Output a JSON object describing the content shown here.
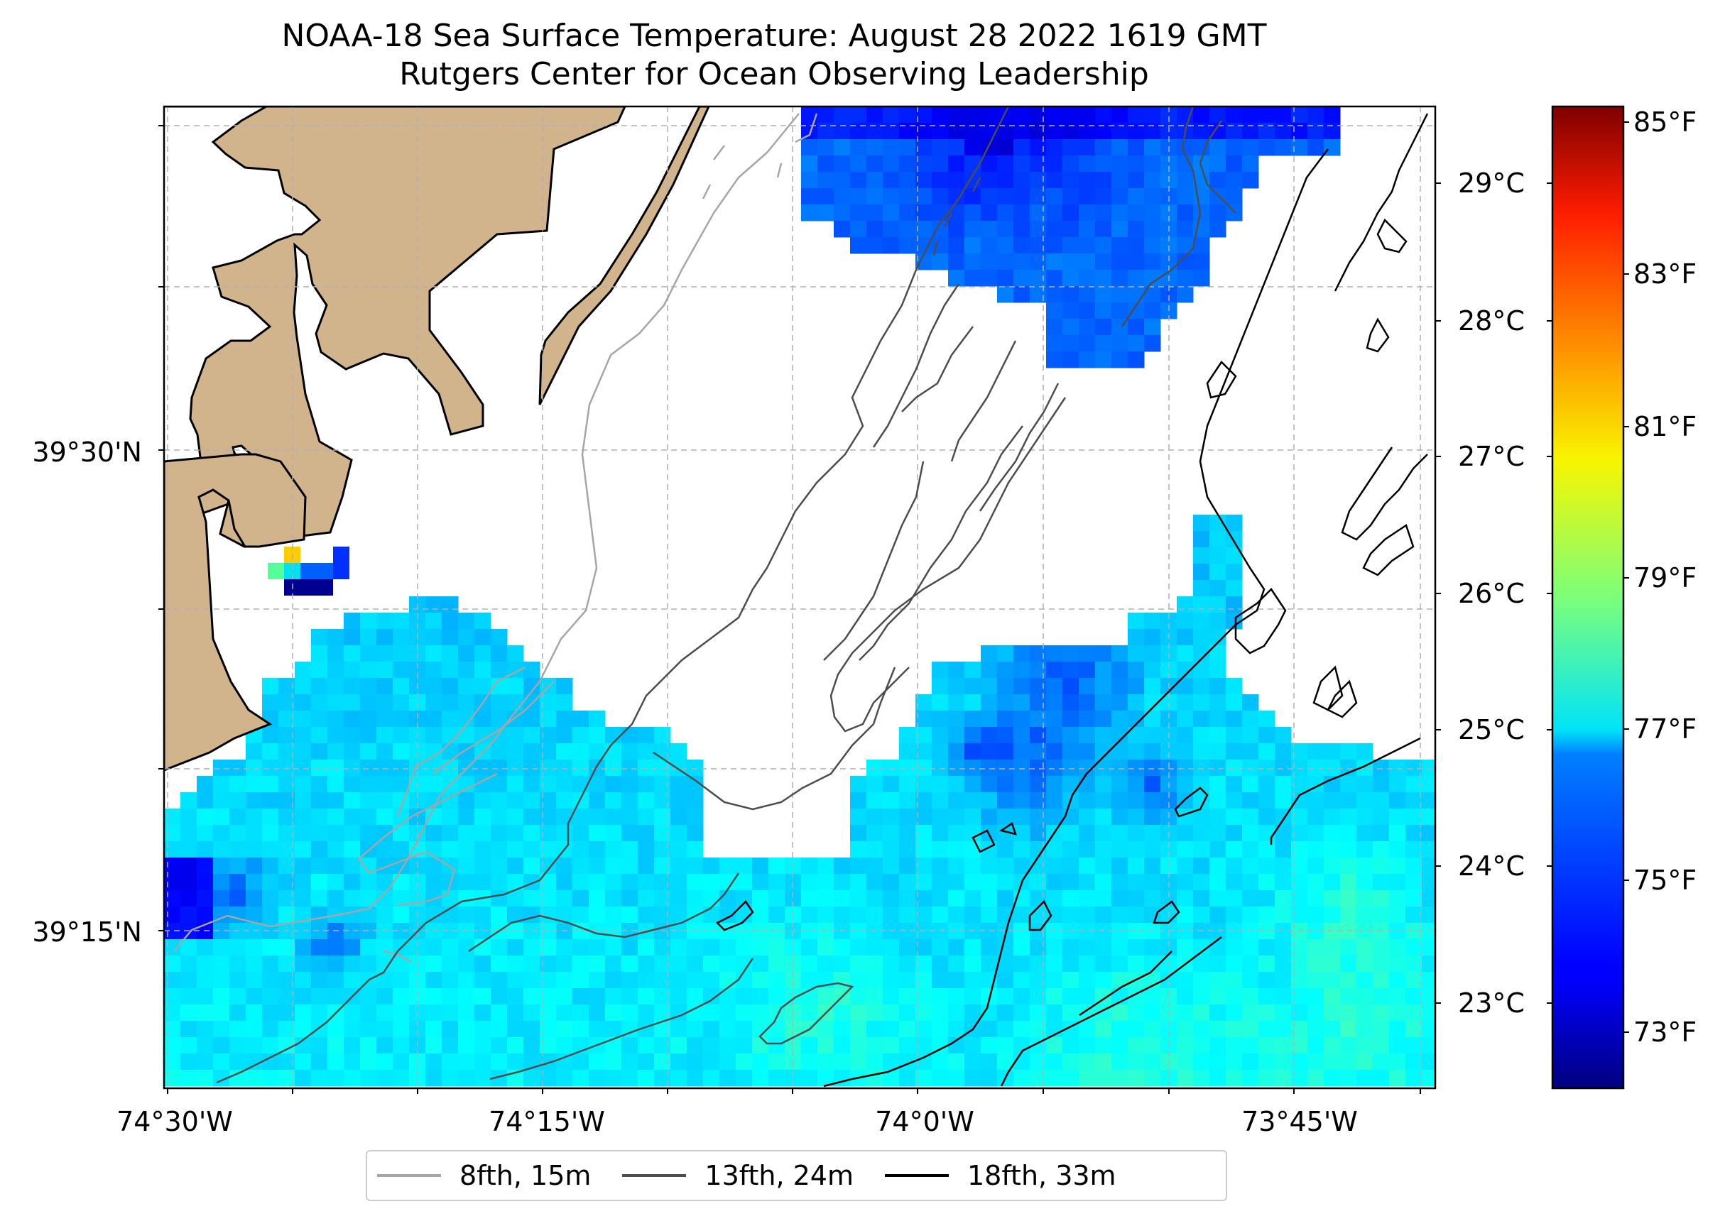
{
  "title": {
    "line1": "NOAA-18 Sea Surface Temperature: August 28 2022 1619 GMT",
    "line2": "Rutgers Center for Ocean Observing Leadership"
  },
  "map": {
    "lat_labels": [
      "39°30'N",
      "39°15'N"
    ],
    "lon_labels": [
      "74°30'W",
      "74°15'W",
      "74°0'W",
      "73°45'W"
    ],
    "land_color": "#d2b48c",
    "no_data_color": "#ffffff",
    "gridline_color": "#b0b0b0"
  },
  "colorbar": {
    "celsius_ticks": [
      "29°C",
      "28°C",
      "27°C",
      "26°C",
      "25°C",
      "24°C",
      "23°C"
    ],
    "fahrenheit_ticks": [
      "85°F",
      "83°F",
      "81°F",
      "79°F",
      "77°F",
      "75°F",
      "73°F"
    ],
    "colormap": "jet",
    "range_f": [
      72.4,
      85.4
    ]
  },
  "legend": {
    "items": [
      {
        "label": "8fth, 15m",
        "color": "#a6a6a6"
      },
      {
        "label": "13fth, 24m",
        "color": "#4d4d4d"
      },
      {
        "label": "18fth, 33m",
        "color": "#000000"
      }
    ]
  }
}
